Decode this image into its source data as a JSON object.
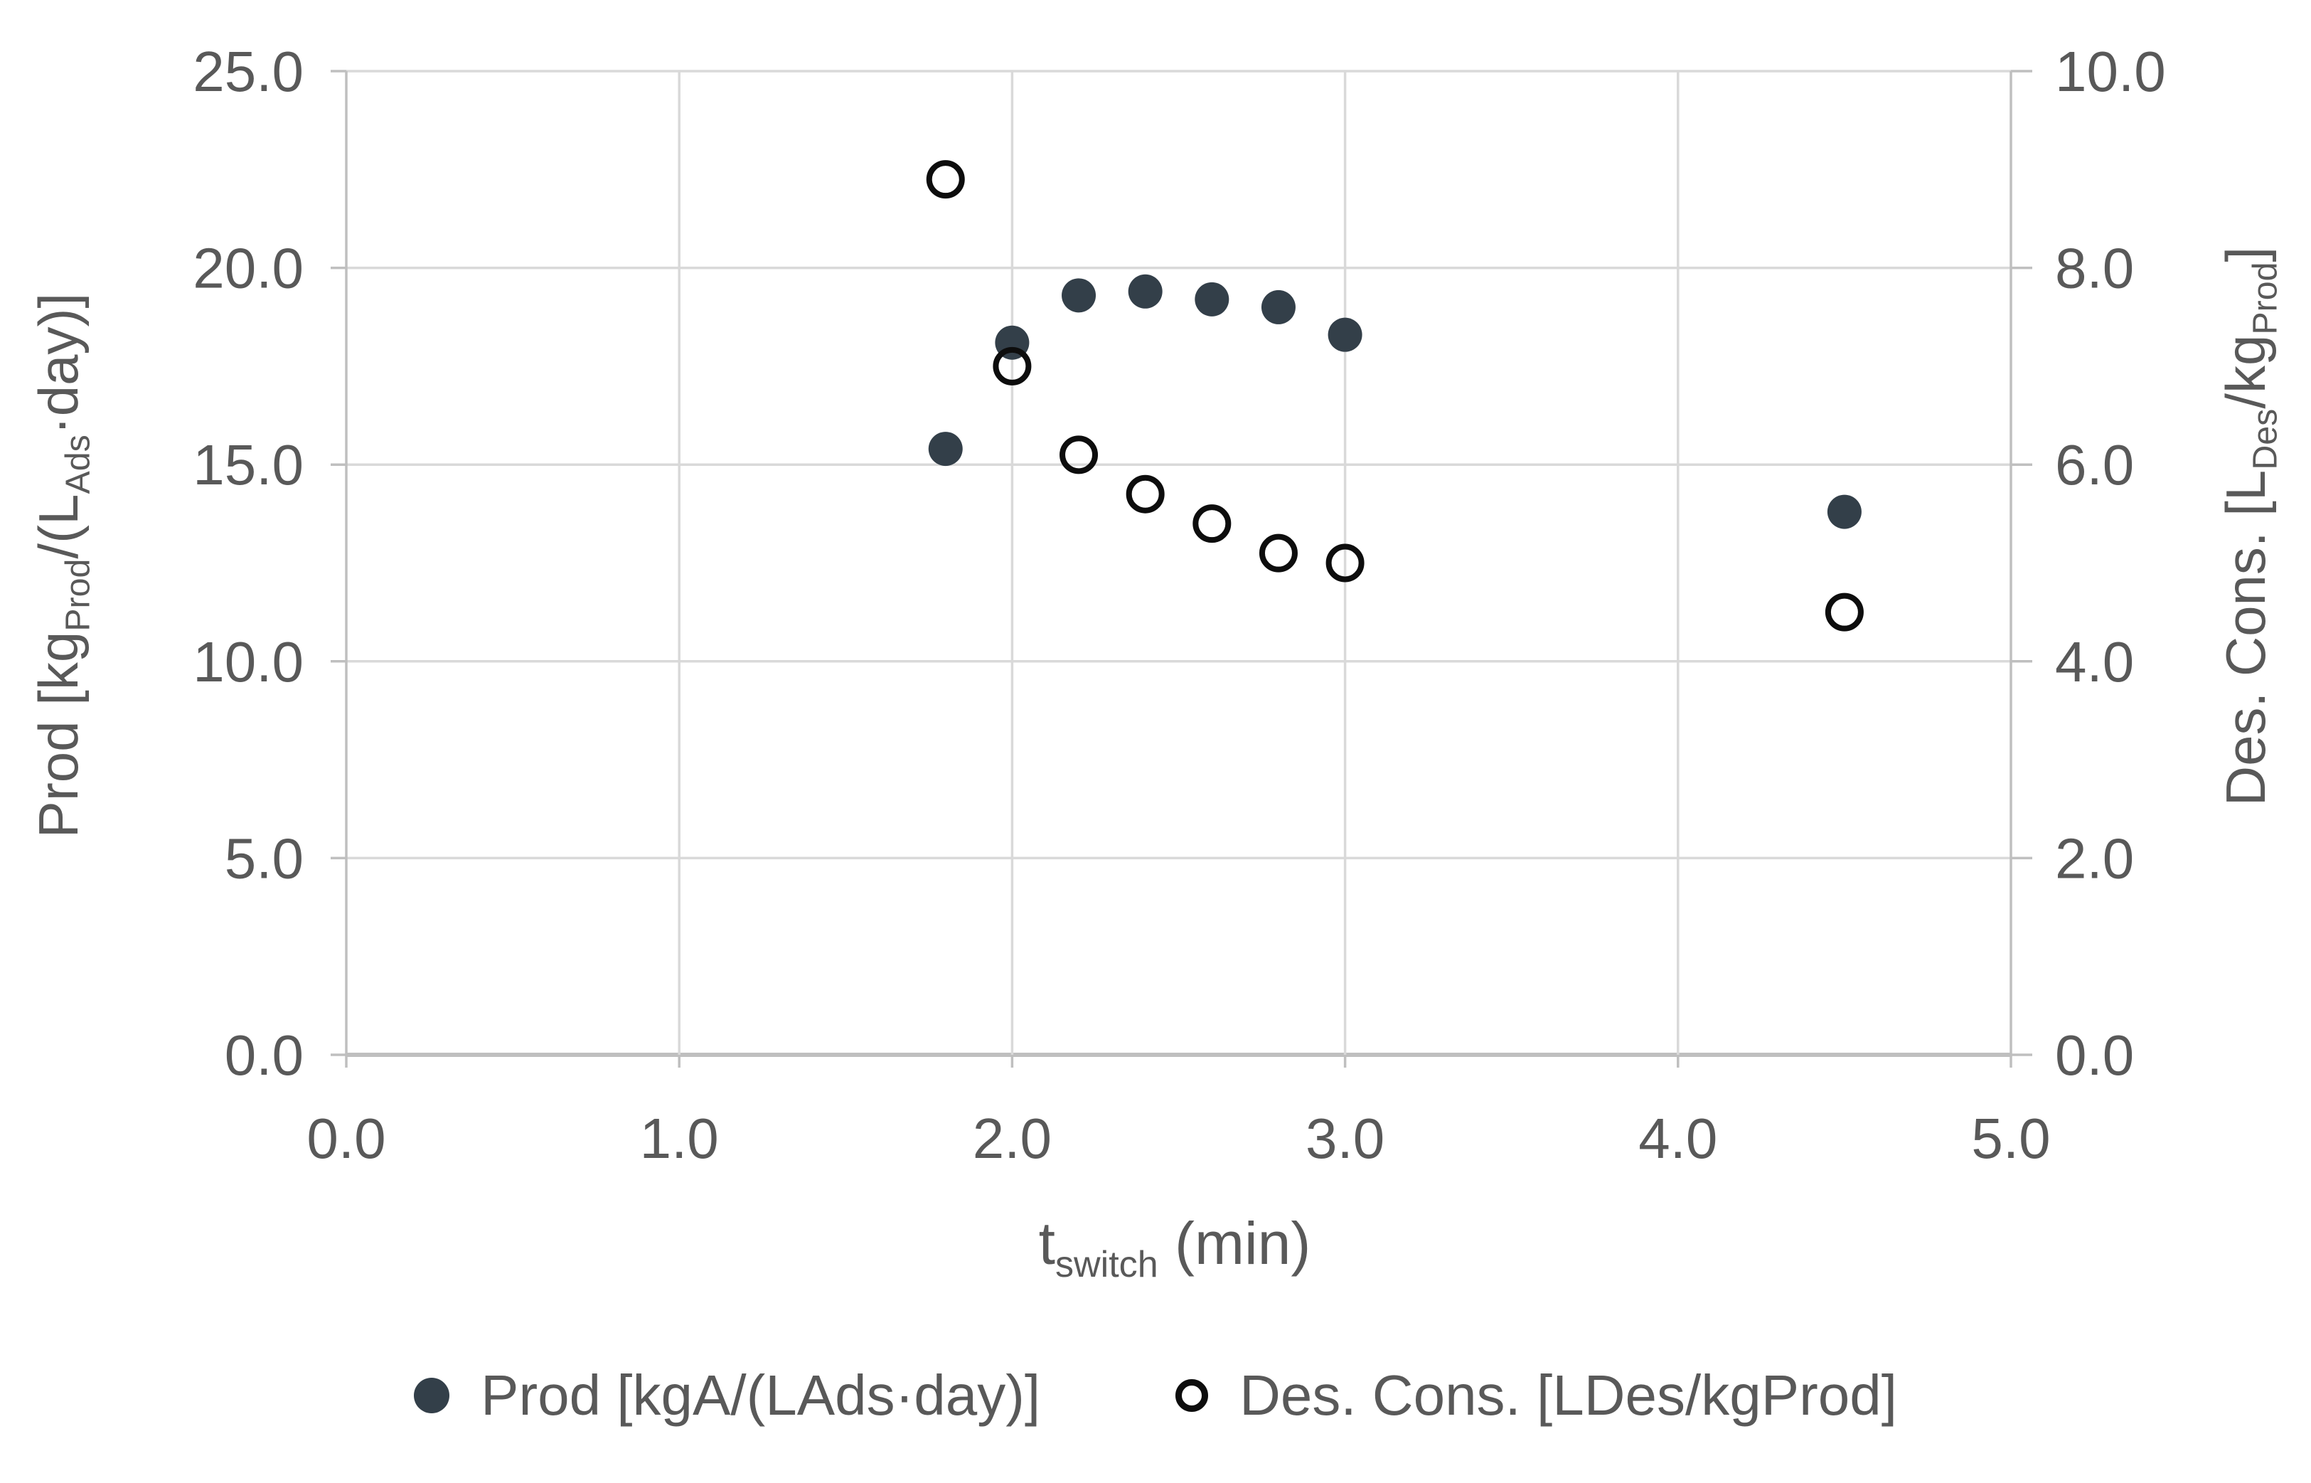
{
  "chart_data": {
    "type": "scatter",
    "title": "",
    "x": [
      1.8,
      2.0,
      2.2,
      2.4,
      2.6,
      2.8,
      3.0,
      4.5
    ],
    "series": [
      {
        "name": "Prod [kgA/(LAds·day)]",
        "axis": "left",
        "marker": "filled-circle",
        "values": [
          15.4,
          18.1,
          19.3,
          19.4,
          19.2,
          19.0,
          18.3,
          13.8
        ]
      },
      {
        "name": "Des. Cons. [LDes/kgProd]",
        "axis": "right",
        "marker": "open-circle",
        "values": [
          8.9,
          7.0,
          6.1,
          5.7,
          5.4,
          5.1,
          5.0,
          4.5
        ]
      }
    ],
    "axes": {
      "x": {
        "label": "t_switch (min)",
        "min": 0,
        "max": 5,
        "tick_labels": [
          "0.0",
          "1.0",
          "2.0",
          "3.0",
          "4.0",
          "5.0"
        ]
      },
      "y_left": {
        "label": "Prod [kgProd/(LAds·day)]",
        "min": 0,
        "max": 25,
        "tick_labels": [
          "0.0",
          "5.0",
          "10.0",
          "15.0",
          "20.0",
          "25.0"
        ]
      },
      "y_right": {
        "label": "Des. Cons. [LDes/kgProd]",
        "min": 0,
        "max": 10,
        "tick_labels": [
          "0.0",
          "2.0",
          "4.0",
          "6.0",
          "8.0",
          "10.0"
        ]
      }
    },
    "grid": true,
    "legend_position": "bottom"
  },
  "titles": {
    "x": {
      "p1": "t",
      "s1": "switch",
      "p2": " (min)"
    },
    "left": {
      "p1": "Prod [kg",
      "s1": "Prod",
      "p2": "/(L",
      "s2": "Ads",
      "p3": "·day)]"
    },
    "right": {
      "p1": "Des. Cons. [L",
      "s1": "Des",
      "p2": "/kg",
      "s2": "Prod",
      "p3": "]"
    }
  },
  "legend": {
    "items": [
      {
        "label": "Prod [kgA/(LAds·day)]",
        "marker": "filled-circle"
      },
      {
        "label": "Des. Cons. [LDes/kgProd]",
        "marker": "open-circle"
      }
    ]
  },
  "colors": {
    "prod_marker": "#333f49",
    "des_marker_stroke": "#0d0d0d",
    "gridline": "#d9d9d9",
    "axis_line": "#bfbfbf",
    "tick_text": "#595959",
    "title_text": "#595959",
    "background": "#ffffff"
  }
}
